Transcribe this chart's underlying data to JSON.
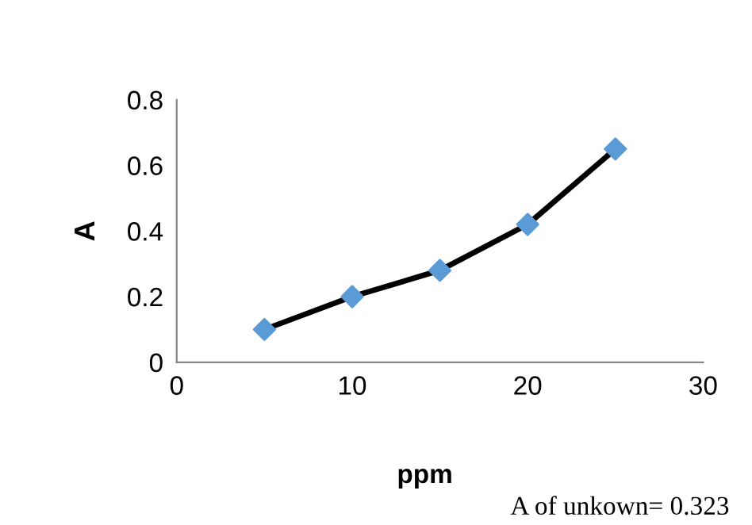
{
  "chart_data": {
    "type": "line",
    "xlabel": "ppm",
    "ylabel": "A",
    "annotations": [
      "A of unkown= 0.323"
    ],
    "series": [
      {
        "color": "#000000",
        "colors": [
          "#5b9bd5",
          "#5b9bd5",
          "#5b9bd5",
          "#5b9bd5",
          "#5b9bd5"
        ],
        "x": [
          5,
          10,
          15,
          20,
          25
        ],
        "values": [
          0.1,
          0.2,
          0.28,
          0.42,
          0.65
        ]
      }
    ],
    "xlim": [
      0,
      30
    ],
    "xticks": [
      0,
      10,
      20,
      30
    ],
    "ylim": [
      0,
      0.8
    ],
    "yticks": [
      0,
      0.2,
      0.4,
      0.6,
      0.8
    ],
    "marker": "diamond",
    "line_style": "solid",
    "grid": false,
    "legend": false
  }
}
